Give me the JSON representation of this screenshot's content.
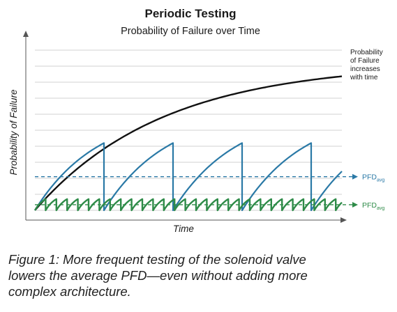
{
  "chart_data": {
    "type": "line",
    "title": "Periodic Testing",
    "subtitle": "Probability of Failure over Time",
    "xlabel": "Time",
    "ylabel": "Probability of Failure",
    "xlim": [
      0,
      100
    ],
    "ylim": [
      0,
      100
    ],
    "grid": true,
    "note_lines": [
      "Probability",
      "of Failure",
      "increases",
      "with time"
    ],
    "pfd_label": "PFD",
    "pfd_sub": "avg",
    "series": [
      {
        "values": {
          "type": "exponential-rise",
          "asymptote": 92,
          "rate": 0.024
        }
      },
      {
        "values": {
          "type": "sawtooth",
          "period": 22.5,
          "peak": 42,
          "avg": 21
        }
      },
      {
        "values": {
          "type": "sawtooth",
          "period": 3.5,
          "peak": 7,
          "avg": 3.5
        }
      }
    ],
    "colors": {
      "curve": "#111111",
      "long_interval": "#2a79a6",
      "short_interval": "#2e8b48",
      "grid": "#d0d0d0",
      "axis": "#555555"
    }
  },
  "caption": {
    "lines": [
      "Figure 1: More frequent testing of the solenoid valve",
      "lowers the average PFD—even without adding more",
      "complex architecture."
    ]
  }
}
